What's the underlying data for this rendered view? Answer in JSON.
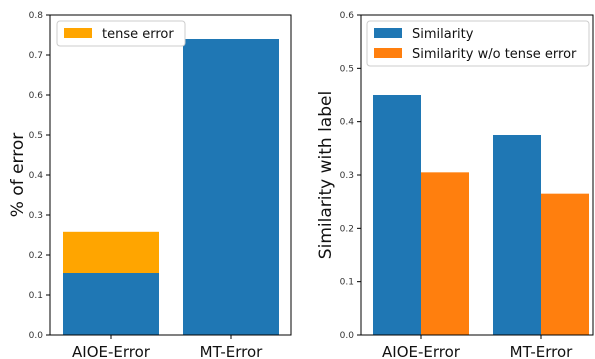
{
  "chart_data": [
    {
      "type": "bar",
      "stacked": true,
      "categories": [
        "AIOE-Error",
        "MT-Error"
      ],
      "series": [
        {
          "values": [
            0.155,
            0.74
          ],
          "color": "#1f77b4"
        },
        {
          "name": "tense error",
          "values": [
            0.103,
            0.0
          ],
          "color": "#ffa500"
        }
      ],
      "ylabel": "% of error",
      "ylim": [
        0,
        0.8
      ],
      "yticks": [
        "0.0",
        "0.1",
        "0.2",
        "0.3",
        "0.4",
        "0.5",
        "0.6",
        "0.7",
        "0.8"
      ],
      "legend": {
        "position": "top-left",
        "entries": [
          "tense error"
        ]
      }
    },
    {
      "type": "bar",
      "grouped": true,
      "categories": [
        "AIOE-Error",
        "MT-Error"
      ],
      "series": [
        {
          "name": "Similarity",
          "values": [
            0.45,
            0.375
          ],
          "color": "#1f77b4"
        },
        {
          "name": "Similarity w/o tense error",
          "values": [
            0.305,
            0.265
          ],
          "color": "#ff7f0e"
        }
      ],
      "ylabel": "Similarity with label",
      "ylim": [
        0,
        0.6
      ],
      "yticks": [
        "0.0",
        "0.1",
        "0.2",
        "0.3",
        "0.4",
        "0.5",
        "0.6"
      ],
      "legend": {
        "position": "top-left",
        "entries": [
          "Similarity",
          "Similarity w/o tense error"
        ]
      }
    }
  ]
}
